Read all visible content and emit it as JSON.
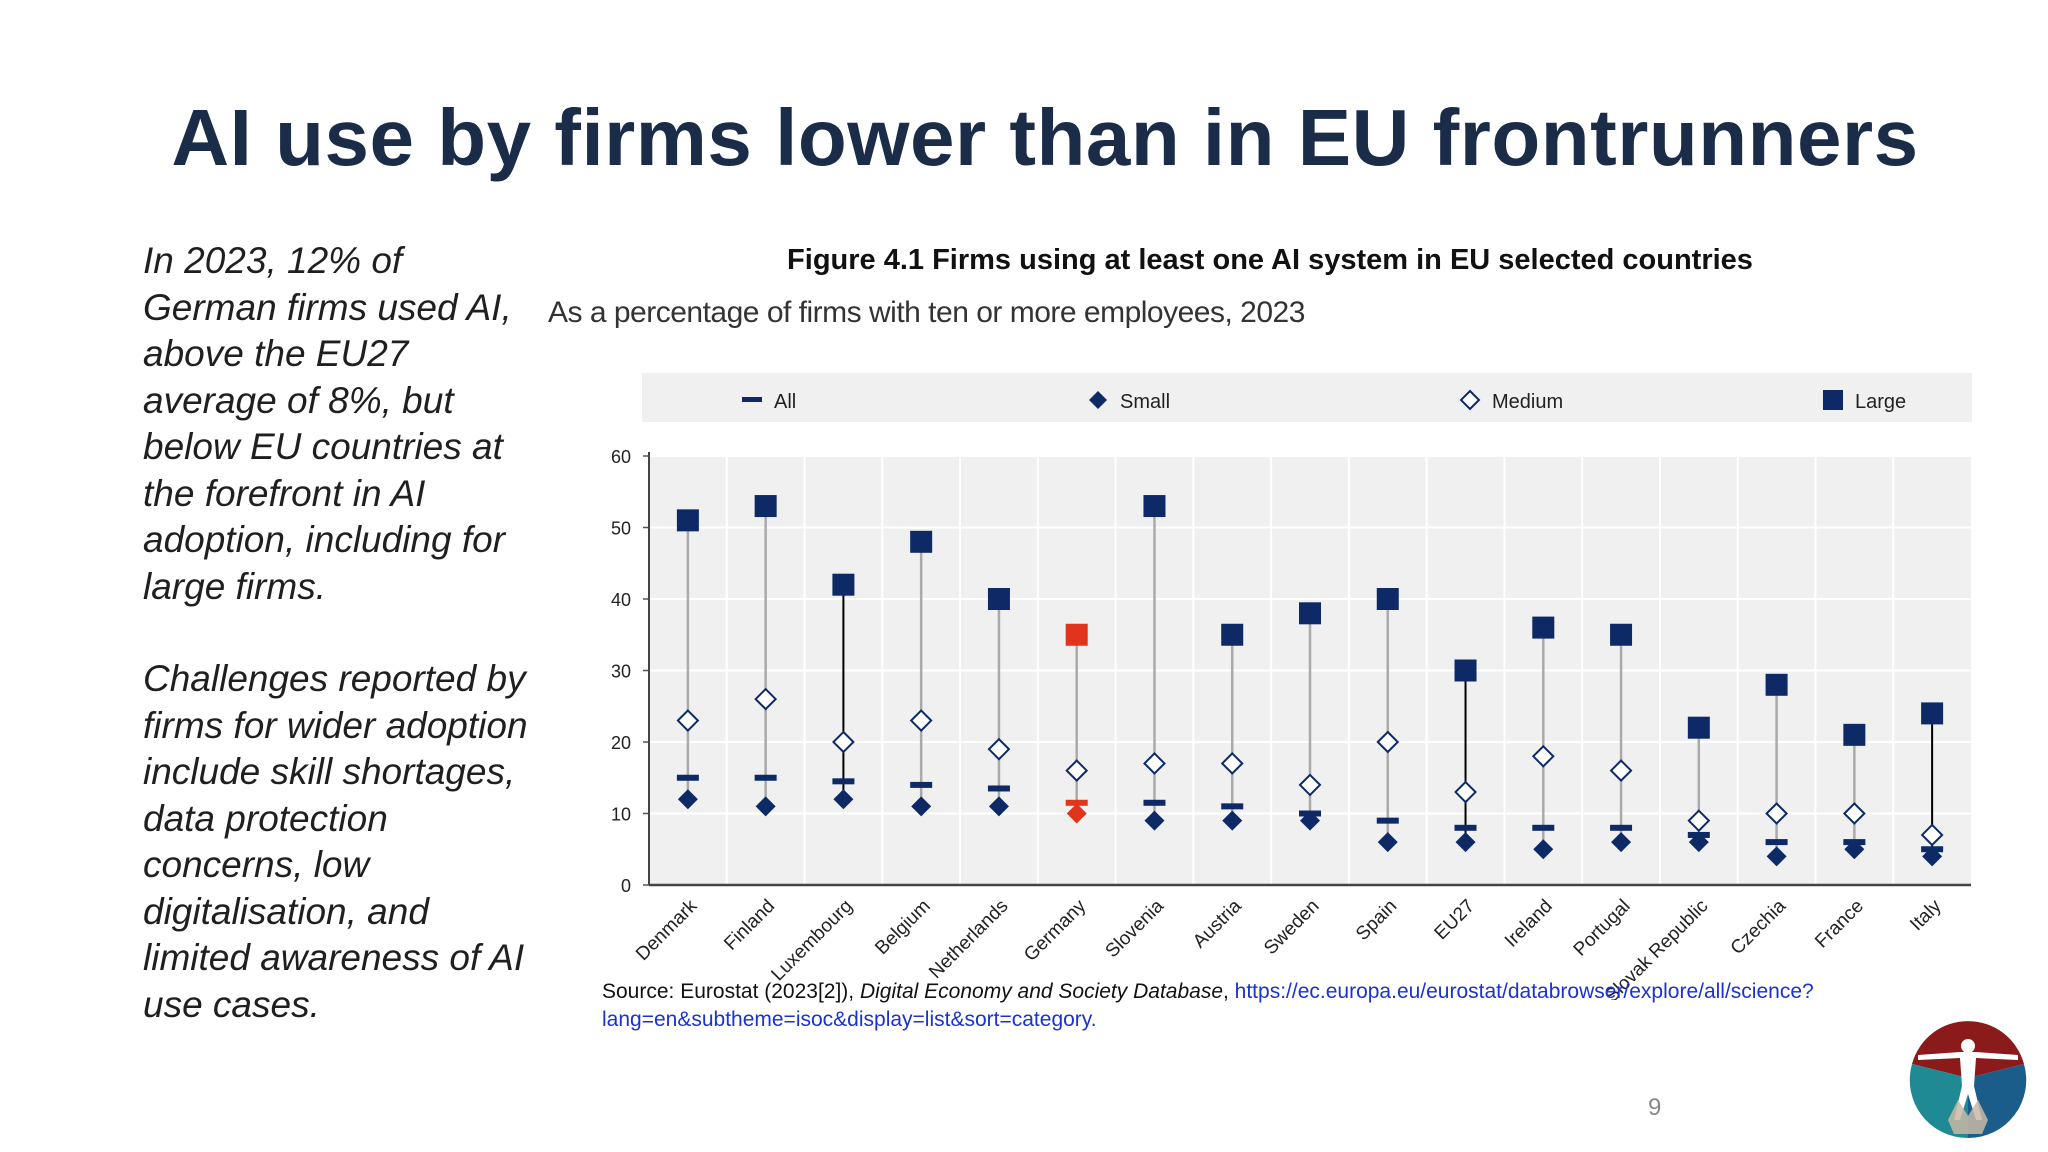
{
  "slide": {
    "title": "AI use by firms lower than in EU frontrunners",
    "paragraph1": "In 2023, 12% of German firms used AI, above the EU27 average of 8%, but below EU countries at the forefront in AI adoption, including for large firms.",
    "paragraph2": "Challenges reported by firms for wider adoption include skill shortages, data protection concerns, low digitalisation, and limited awareness of AI use cases.",
    "page_number": "9"
  },
  "source": {
    "prefix": "Source: Eurostat (2023[2]), ",
    "database": "Digital Economy and Society Database",
    "separator": ", ",
    "url": "https://ec.europa.eu/eurostat/databrowser/explore/all/science?lang=en&subtheme=isoc&display=list&sort=category."
  },
  "colors": {
    "navy": "#0d2a66",
    "highlight": "#e0341c",
    "title": "#1a2c47",
    "plot_bg": "#f0f0f0",
    "gray_line": "#aaaaaa",
    "black_line": "#000000",
    "logo_red": "#8b1a1a",
    "logo_teal": "#1f8a94",
    "logo_blue": "#1a5c8a"
  },
  "logo": {
    "icon": "vitruvian-man-logo-icon"
  },
  "chart_data": {
    "type": "scatter",
    "title": "Figure 4.1 Firms using at least one AI system in EU selected countries",
    "subtitle": "As a percentage of firms with ten or more employees, 2023",
    "xlabel": "",
    "ylabel": "",
    "ylim": [
      0,
      60
    ],
    "yticks": [
      0,
      10,
      20,
      30,
      40,
      50,
      60
    ],
    "grid": true,
    "legend_position": "top",
    "categories": [
      "Denmark",
      "Finland",
      "Luxembourg",
      "Belgium",
      "Netherlands",
      "Germany",
      "Slovenia",
      "Austria",
      "Sweden",
      "Spain",
      "EU27",
      "Ireland",
      "Portugal",
      "Slovak Republic",
      "Czechia",
      "France",
      "Italy"
    ],
    "highlight_category": "Germany",
    "range_line_style": [
      "gray",
      "gray",
      "black",
      "gray",
      "gray",
      "gray",
      "gray",
      "gray",
      "gray",
      "gray",
      "black",
      "gray",
      "gray",
      "gray",
      "gray",
      "gray",
      "black"
    ],
    "series": [
      {
        "name": "All",
        "marker": "dash",
        "values": [
          15,
          15,
          14.5,
          14,
          13.5,
          11.5,
          11.5,
          11,
          10,
          9,
          8,
          8,
          8,
          7,
          6,
          6,
          5
        ]
      },
      {
        "name": "Small",
        "marker": "diamond",
        "values": [
          12,
          11,
          12,
          11,
          11,
          10,
          9,
          9,
          9,
          6,
          6,
          5,
          6,
          6,
          4,
          5,
          4
        ]
      },
      {
        "name": "Medium",
        "marker": "diamond-open",
        "values": [
          23,
          26,
          20,
          23,
          19,
          16,
          17,
          17,
          14,
          20,
          13,
          18,
          16,
          9,
          10,
          10,
          7
        ]
      },
      {
        "name": "Large",
        "marker": "square",
        "values": [
          51,
          53,
          42,
          48,
          40,
          35,
          53,
          35,
          38,
          40,
          30,
          36,
          35,
          22,
          28,
          21,
          24
        ]
      }
    ]
  }
}
